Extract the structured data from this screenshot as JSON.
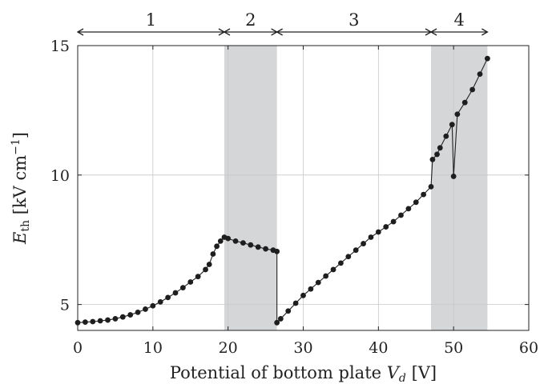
{
  "chart_data": {
    "type": "scatter",
    "title": "",
    "xlabel": "Potential of bottom plate V_d [V]",
    "ylabel": "E_th [kV cm^-1]",
    "xlim": [
      0,
      60
    ],
    "ylim": [
      4,
      15
    ],
    "x_ticks": [
      "0",
      "10",
      "20",
      "30",
      "40",
      "50",
      "60"
    ],
    "y_ticks": [
      "5",
      "10",
      "15"
    ],
    "grid": true,
    "regions": [
      {
        "label": "1",
        "x_from": 0,
        "x_to": 19.5,
        "shaded": false
      },
      {
        "label": "2",
        "x_from": 19.5,
        "x_to": 26.5,
        "shaded": true
      },
      {
        "label": "3",
        "x_from": 26.5,
        "x_to": 47,
        "shaded": false
      },
      {
        "label": "4",
        "x_from": 47,
        "x_to": 54.5,
        "shaded": true
      }
    ],
    "series": [
      {
        "points": [
          [
            0,
            4.3
          ],
          [
            1,
            4.32
          ],
          [
            2,
            4.34
          ],
          [
            3,
            4.37
          ],
          [
            4,
            4.4
          ],
          [
            5,
            4.45
          ],
          [
            6,
            4.52
          ],
          [
            7,
            4.6
          ],
          [
            8,
            4.7
          ],
          [
            9,
            4.82
          ],
          [
            10,
            4.95
          ],
          [
            11,
            5.1
          ],
          [
            12,
            5.27
          ],
          [
            13,
            5.45
          ],
          [
            14,
            5.65
          ],
          [
            15,
            5.87
          ],
          [
            16,
            6.08
          ],
          [
            17,
            6.35
          ],
          [
            17.5,
            6.55
          ],
          [
            18,
            6.95
          ],
          [
            18.5,
            7.25
          ],
          [
            19,
            7.45
          ],
          [
            19.5,
            7.6
          ],
          [
            20,
            7.55
          ],
          [
            21,
            7.45
          ],
          [
            22,
            7.38
          ],
          [
            23,
            7.3
          ],
          [
            24,
            7.22
          ],
          [
            25,
            7.15
          ],
          [
            26,
            7.1
          ],
          [
            26.5,
            7.05
          ],
          [
            26.5,
            4.3
          ],
          [
            27,
            4.45
          ],
          [
            28,
            4.75
          ],
          [
            29,
            5.05
          ],
          [
            30,
            5.35
          ],
          [
            31,
            5.6
          ],
          [
            32,
            5.85
          ],
          [
            33,
            6.1
          ],
          [
            34,
            6.35
          ],
          [
            35,
            6.6
          ],
          [
            36,
            6.85
          ],
          [
            37,
            7.1
          ],
          [
            38,
            7.35
          ],
          [
            39,
            7.6
          ],
          [
            40,
            7.8
          ],
          [
            41,
            8.0
          ],
          [
            42,
            8.2
          ],
          [
            43,
            8.45
          ],
          [
            44,
            8.7
          ],
          [
            45,
            8.95
          ],
          [
            46,
            9.25
          ],
          [
            47,
            9.55
          ],
          [
            47.2,
            10.6
          ],
          [
            47.8,
            10.8
          ],
          [
            48.2,
            11.05
          ],
          [
            49,
            11.5
          ],
          [
            49.8,
            11.95
          ],
          [
            50,
            9.95
          ],
          [
            50.5,
            12.35
          ],
          [
            51.5,
            12.8
          ],
          [
            52.5,
            13.3
          ],
          [
            53.5,
            13.9
          ],
          [
            54.5,
            14.5
          ]
        ]
      }
    ]
  }
}
